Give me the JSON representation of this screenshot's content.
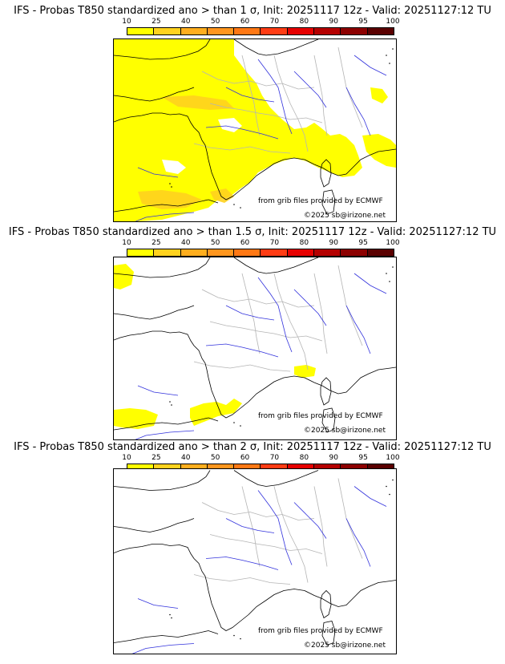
{
  "panels": [
    {
      "title": "IFS - Probas T850  standardized ano > than 1 σ, Init: 20251117 12z - Valid: 20251127:12 TU",
      "coverage": "high"
    },
    {
      "title": "IFS - Probas T850  standardized ano > than 1.5 σ, Init: 20251117 12z - Valid: 20251127:12 TU",
      "coverage": "low"
    },
    {
      "title": "IFS - Probas T850  standardized ano > than 2 σ, Init: 20251117 12z - Valid: 20251127:12 TU",
      "coverage": "none"
    }
  ],
  "colorbar": {
    "levels": [
      "10",
      "25",
      "40",
      "50",
      "60",
      "70",
      "80",
      "90",
      "95",
      "100"
    ],
    "colors": [
      "#ffff00",
      "#ffd21e",
      "#ffae1e",
      "#ff961e",
      "#ff7814",
      "#ff3c14",
      "#e60000",
      "#b40000",
      "#8c0000",
      "#5a0000"
    ]
  },
  "credits": {
    "source": "from grib files provided by ECMWF",
    "copyright": "©2025 sb@irizone.net"
  },
  "map_colors": {
    "land_prob": "#ffff00",
    "prob_mid": "#ffd21e",
    "coast": "#000000",
    "borders": "#b4b4b4",
    "rivers": "#3232dc"
  }
}
